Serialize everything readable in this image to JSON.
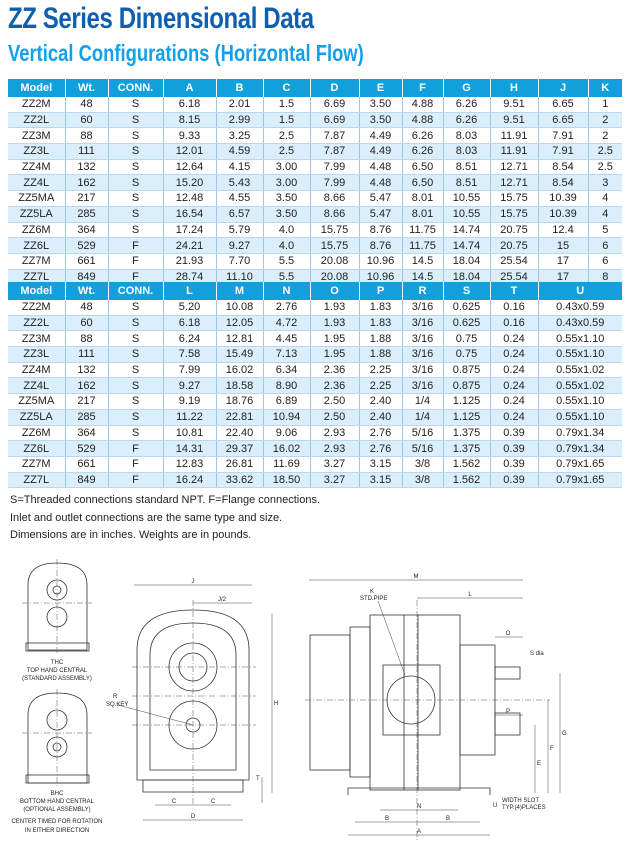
{
  "title": "ZZ Series Dimensional Data",
  "subtitle": "Vertical Configurations (Horizontal Flow)",
  "table1": {
    "headers": [
      "Model",
      "Wt.",
      "CONN.",
      "A",
      "B",
      "C",
      "D",
      "E",
      "F",
      "G",
      "H",
      "J",
      "K"
    ],
    "rows": [
      [
        "ZZ2M",
        "48",
        "S",
        "6.18",
        "2.01",
        "1.5",
        "6.69",
        "3.50",
        "4.88",
        "6.26",
        "9.51",
        "6.65",
        "1"
      ],
      [
        "ZZ2L",
        "60",
        "S",
        "8.15",
        "2.99",
        "1.5",
        "6.69",
        "3.50",
        "4.88",
        "6.26",
        "9.51",
        "6.65",
        "2"
      ],
      [
        "ZZ3M",
        "88",
        "S",
        "9.33",
        "3.25",
        "2.5",
        "7.87",
        "4.49",
        "6.26",
        "8.03",
        "11.91",
        "7.91",
        "2"
      ],
      [
        "ZZ3L",
        "111",
        "S",
        "12.01",
        "4.59",
        "2.5",
        "7.87",
        "4.49",
        "6.26",
        "8.03",
        "11.91",
        "7.91",
        "2.5"
      ],
      [
        "ZZ4M",
        "132",
        "S",
        "12.64",
        "4.15",
        "3.00",
        "7.99",
        "4.48",
        "6.50",
        "8.51",
        "12.71",
        "8.54",
        "2.5"
      ],
      [
        "ZZ4L",
        "162",
        "S",
        "15.20",
        "5.43",
        "3.00",
        "7.99",
        "4.48",
        "6.50",
        "8.51",
        "12.71",
        "8.54",
        "3"
      ],
      [
        "ZZ5MA",
        "217",
        "S",
        "12.48",
        "4.55",
        "3.50",
        "8.66",
        "5.47",
        "8.01",
        "10.55",
        "15.75",
        "10.39",
        "4"
      ],
      [
        "ZZ5LA",
        "285",
        "S",
        "16.54",
        "6.57",
        "3.50",
        "8.66",
        "5.47",
        "8.01",
        "10.55",
        "15.75",
        "10.39",
        "4"
      ],
      [
        "ZZ6M",
        "364",
        "S",
        "17.24",
        "5.79",
        "4.0",
        "15.75",
        "8.76",
        "11.75",
        "14.74",
        "20.75",
        "12.4",
        "5"
      ],
      [
        "ZZ6L",
        "529",
        "F",
        "24.21",
        "9.27",
        "4.0",
        "15.75",
        "8.76",
        "11.75",
        "14.74",
        "20.75",
        "15",
        "6"
      ],
      [
        "ZZ7M",
        "661",
        "F",
        "21.93",
        "7.70",
        "5.5",
        "20.08",
        "10.96",
        "14.5",
        "18.04",
        "25.54",
        "17",
        "6"
      ],
      [
        "ZZ7L",
        "849",
        "F",
        "28.74",
        "11.10",
        "5.5",
        "20.08",
        "10.96",
        "14.5",
        "18.04",
        "25.54",
        "17",
        "8"
      ]
    ]
  },
  "table2": {
    "headers": [
      "Model",
      "Wt.",
      "CONN.",
      "L",
      "M",
      "N",
      "O",
      "P",
      "R",
      "S",
      "T",
      "U"
    ],
    "rows": [
      [
        "ZZ2M",
        "48",
        "S",
        "5.20",
        "10.08",
        "2.76",
        "1.93",
        "1.83",
        "3/16",
        "0.625",
        "0.16",
        "0.43x0.59"
      ],
      [
        "ZZ2L",
        "60",
        "S",
        "6.18",
        "12.05",
        "4.72",
        "1.93",
        "1.83",
        "3/16",
        "0.625",
        "0.16",
        "0.43x0.59"
      ],
      [
        "ZZ3M",
        "88",
        "S",
        "6.24",
        "12.81",
        "4.45",
        "1.95",
        "1.88",
        "3/16",
        "0.75",
        "0.24",
        "0.55x1.10"
      ],
      [
        "ZZ3L",
        "111",
        "S",
        "7.58",
        "15.49",
        "7.13",
        "1.95",
        "1.88",
        "3/16",
        "0.75",
        "0.24",
        "0.55x1.10"
      ],
      [
        "ZZ4M",
        "132",
        "S",
        "7.99",
        "16.02",
        "6.34",
        "2.36",
        "2.25",
        "3/16",
        "0.875",
        "0.24",
        "0.55x1.02"
      ],
      [
        "ZZ4L",
        "162",
        "S",
        "9.27",
        "18.58",
        "8.90",
        "2.36",
        "2.25",
        "3/16",
        "0.875",
        "0.24",
        "0.55x1.02"
      ],
      [
        "ZZ5MA",
        "217",
        "S",
        "9.19",
        "18.76",
        "6.89",
        "2.50",
        "2.40",
        "1/4",
        "1.125",
        "0.24",
        "0.55x1.10"
      ],
      [
        "ZZ5LA",
        "285",
        "S",
        "11.22",
        "22.81",
        "10.94",
        "2.50",
        "2.40",
        "1/4",
        "1.125",
        "0.24",
        "0.55x1.10"
      ],
      [
        "ZZ6M",
        "364",
        "S",
        "10.81",
        "22.40",
        "9.06",
        "2.93",
        "2.76",
        "5/16",
        "1.375",
        "0.39",
        "0.79x1.34"
      ],
      [
        "ZZ6L",
        "529",
        "F",
        "14.31",
        "29.37",
        "16.02",
        "2.93",
        "2.76",
        "5/16",
        "1.375",
        "0.39",
        "0.79x1.34"
      ],
      [
        "ZZ7M",
        "661",
        "F",
        "12.83",
        "26.81",
        "11.69",
        "3.27",
        "3.15",
        "3/8",
        "1.562",
        "0.39",
        "0.79x1.65"
      ],
      [
        "ZZ7L",
        "849",
        "F",
        "16.24",
        "33.62",
        "18.50",
        "3.27",
        "3.15",
        "3/8",
        "1.562",
        "0.39",
        "0.79x1.65"
      ]
    ]
  },
  "notes": [
    "S=Threaded connections standard NPT. F=Flange connections.",
    "Inlet and outlet connections are the same type and size.",
    "Dimensions are in inches. Weights are in pounds."
  ],
  "drawing": {
    "thc": [
      "THC",
      "TOP HAND CENTRAL",
      "(STANDARD ASSEMBLY)"
    ],
    "bhc": [
      "BHC",
      "BOTTOM HAND CENTRAL",
      "(OPTIONAL ASSEMBLY)"
    ],
    "center_timed": [
      "CENTER TIMED FOR ROTATION",
      "IN EITHER DIRECTION"
    ],
    "front_labels": {
      "j": "J",
      "j2": "J/2",
      "h": "H",
      "r": "R",
      "sqkey": "SQ.KEY",
      "t": "T",
      "c1": "C",
      "c2": "C",
      "d": "D"
    },
    "side_labels": {
      "m": "M",
      "k": "K",
      "stdpipe": "STD.PIPE",
      "l": "L",
      "o": "O",
      "s": "S dia",
      "p": "P",
      "g": "G",
      "f": "F",
      "e": "E",
      "n": "N",
      "b1": "B",
      "b2": "B",
      "a": "A",
      "u": "U",
      "slot1": "WIDTH SLOT",
      "slot2": "TYP.(4)PLACES"
    }
  }
}
